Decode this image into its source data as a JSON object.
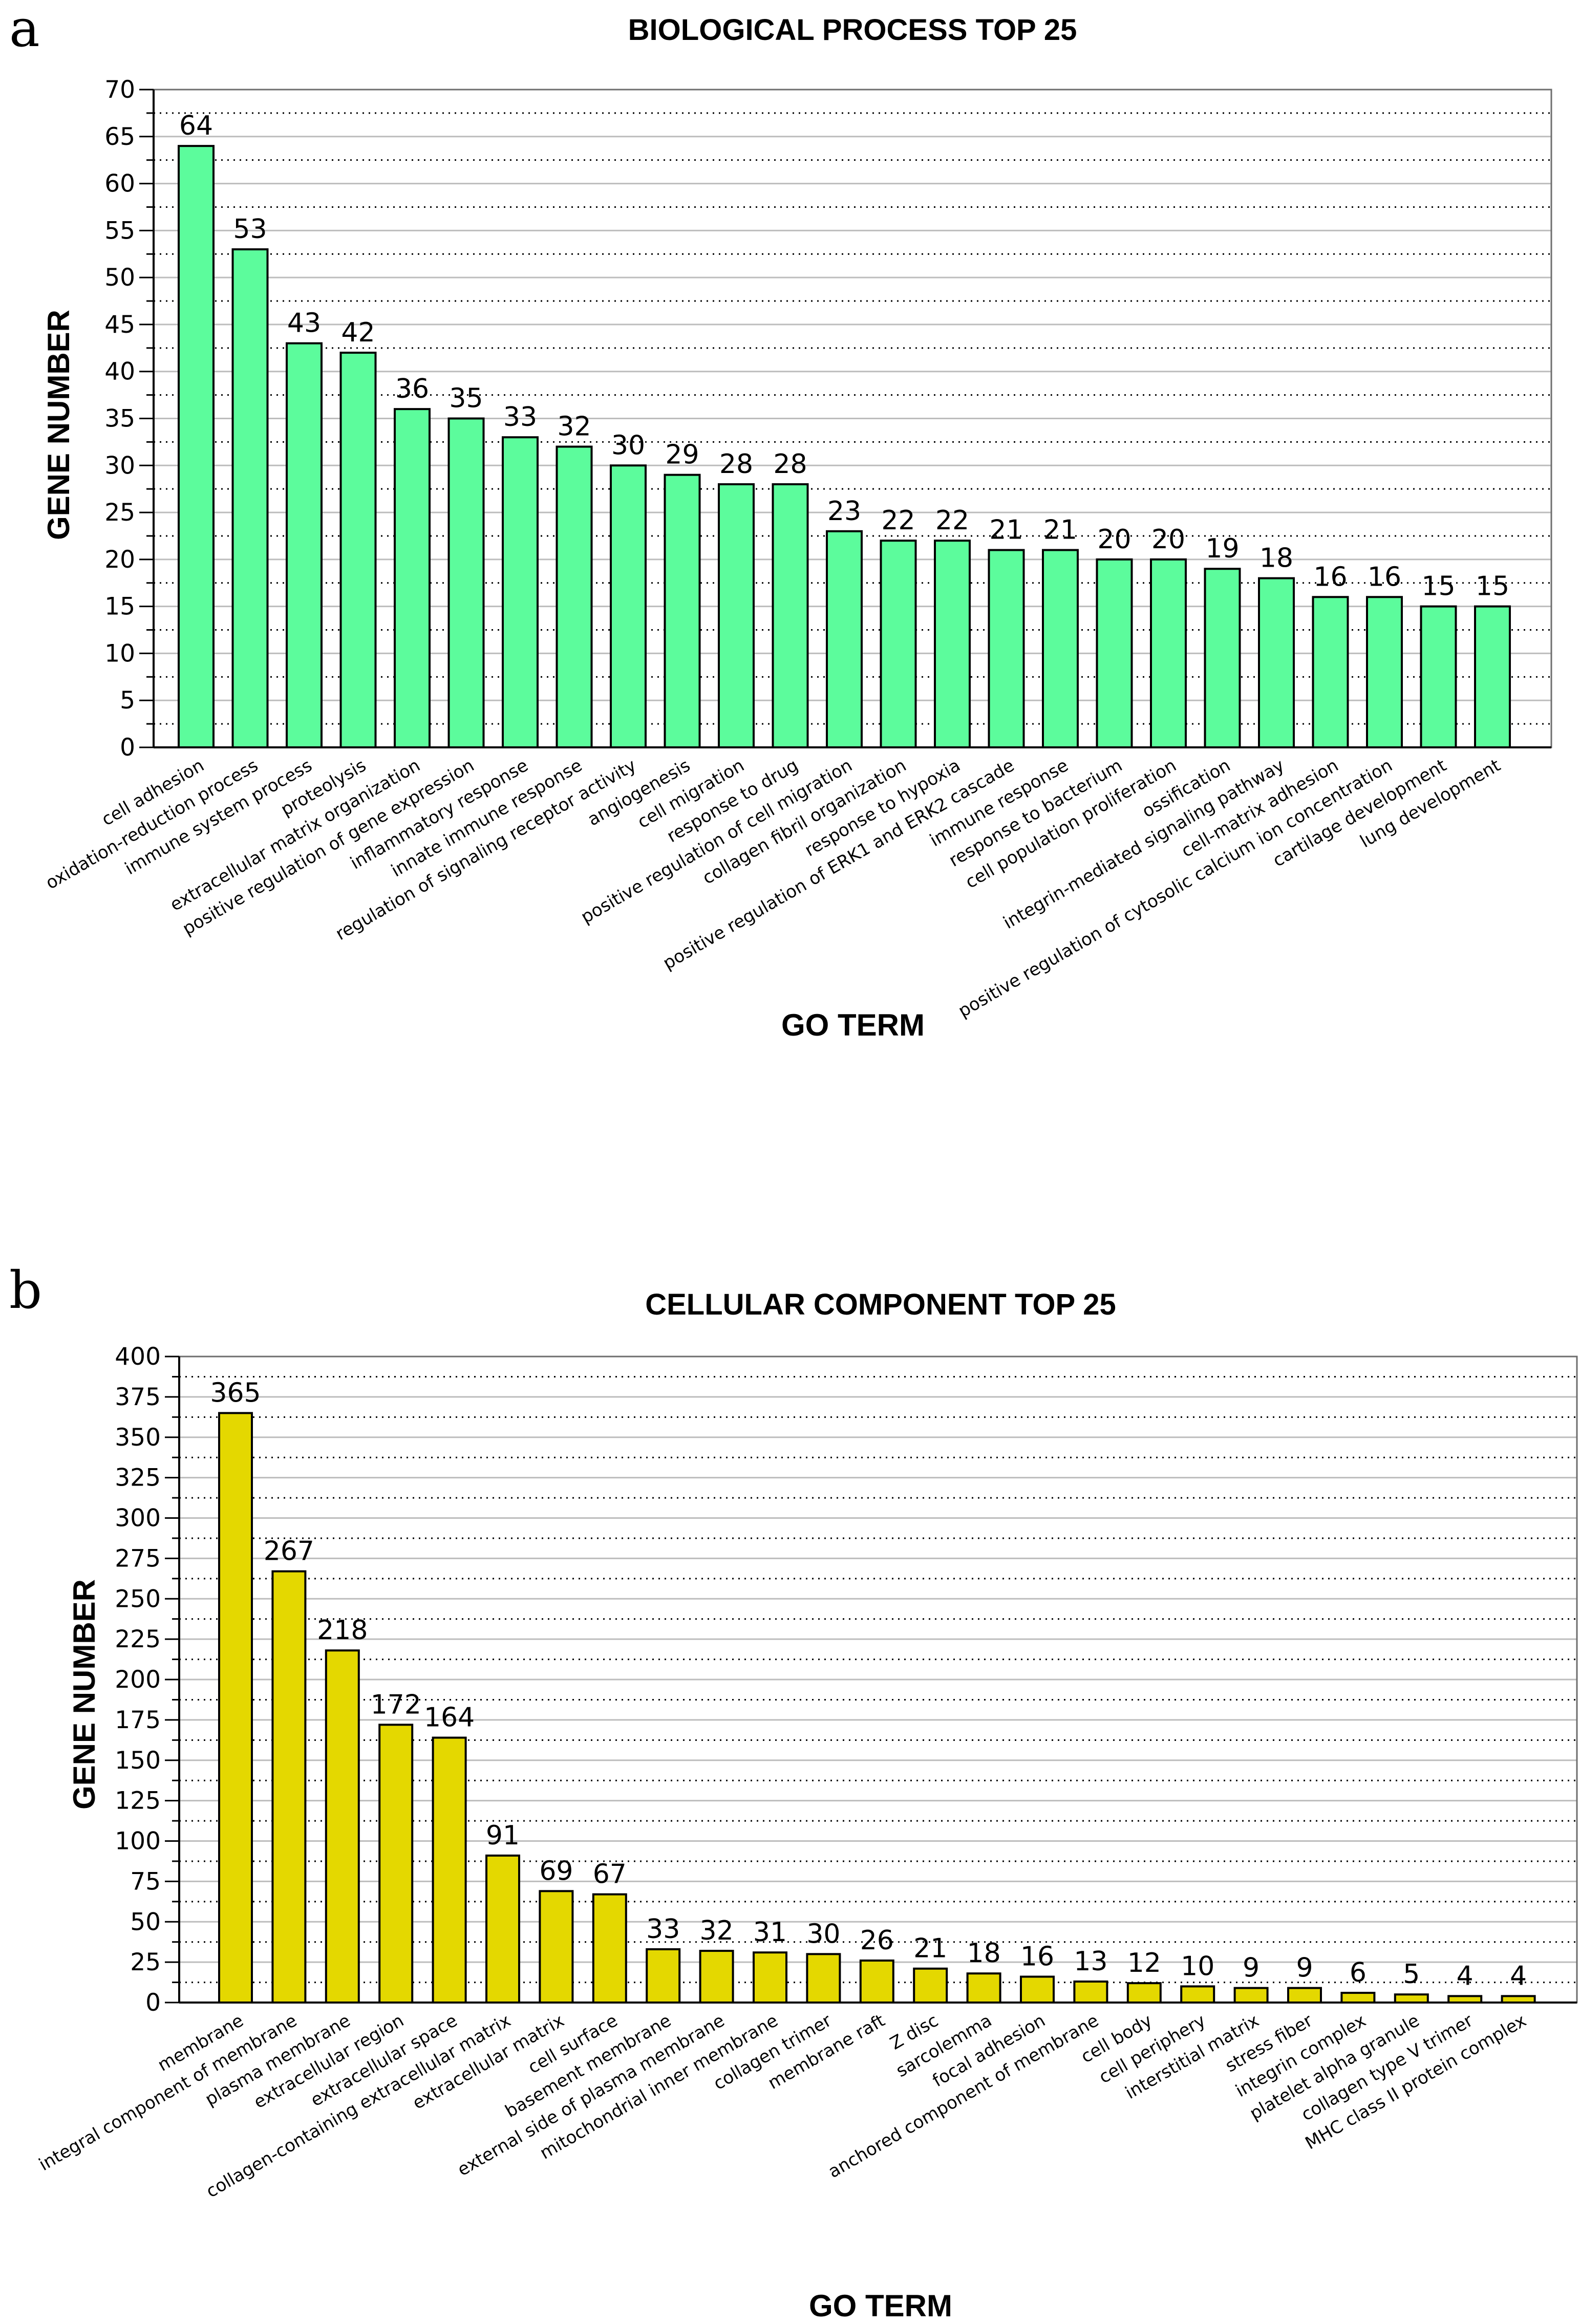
{
  "figure": {
    "panels": [
      {
        "letter": "a",
        "bar_color": "#5cfc9c"
      },
      {
        "letter": "b",
        "bar_color": "#e4d800"
      }
    ]
  },
  "chart_data": [
    {
      "type": "bar",
      "title": "BIOLOGICAL PROCESS TOP 25",
      "xlabel": "GO TERM",
      "ylabel": "GENE NUMBER",
      "ylim": [
        0,
        70
      ],
      "ytick_step": 5,
      "grid": "horizontal dotted",
      "legend": "none",
      "categories": [
        "cell adhesion",
        "oxidation-reduction process",
        "immune system process",
        "proteolysis",
        "extracellular matrix organization",
        "positive regulation of gene expression",
        "inflammatory response",
        "innate immune response",
        "regulation of signaling receptor activity",
        "angiogenesis",
        "cell migration",
        "response to drug",
        "positive regulation of cell migration",
        "collagen fibril organization",
        "response to hypoxia",
        "positive regulation of ERK1 and ERK2 cascade",
        "immune response",
        "response to bacterium",
        "cell population proliferation",
        "ossification",
        "integrin-mediated signaling pathway",
        "cell-matrix adhesion",
        "positive regulation of cytosolic calcium ion concentration",
        "cartilage development",
        "lung development"
      ],
      "values": [
        64,
        53,
        43,
        42,
        36,
        35,
        33,
        32,
        30,
        29,
        28,
        28,
        23,
        22,
        22,
        21,
        21,
        20,
        20,
        19,
        18,
        16,
        16,
        15,
        15
      ]
    },
    {
      "type": "bar",
      "title": "CELLULAR COMPONENT TOP 25",
      "xlabel": "GO TERM",
      "ylabel": "GENE NUMBER",
      "ylim": [
        0,
        400
      ],
      "ytick_step": 25,
      "grid": "horizontal dotted",
      "legend": "none",
      "categories": [
        "membrane",
        "integral component of membrane",
        "plasma membrane",
        "extracellular region",
        "extracellular space",
        "collagen-containing extracellular matrix",
        "extracellular matrix",
        "cell surface",
        "basement membrane",
        "external side of plasma membrane",
        "mitochondrial inner membrane",
        "collagen trimer",
        "membrane raft",
        "Z disc",
        "sarcolemma",
        "focal adhesion",
        "anchored component of membrane",
        "cell body",
        "cell periphery",
        "interstitial matrix",
        "stress fiber",
        "integrin complex",
        "platelet alpha granule",
        "collagen type V trimer",
        "MHC class II protein complex"
      ],
      "values": [
        365,
        267,
        218,
        172,
        164,
        91,
        69,
        67,
        33,
        32,
        31,
        30,
        26,
        21,
        18,
        16,
        13,
        12,
        10,
        9,
        9,
        6,
        5,
        4,
        4
      ]
    }
  ]
}
